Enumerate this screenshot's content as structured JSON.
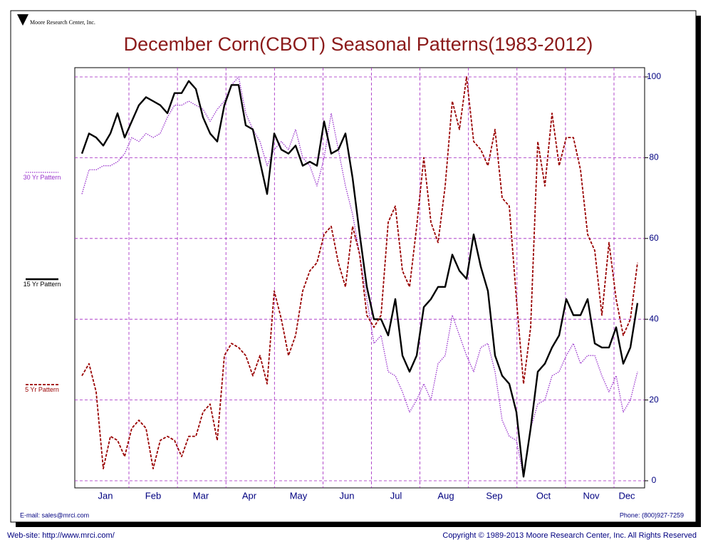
{
  "chart_data": {
    "type": "line",
    "title": "December Corn(CBOT) Seasonal Patterns(1983-2012)",
    "logo": "Moore Research Center, Inc.",
    "email": "E-mail: sales@mrci.com",
    "phone": "Phone: (800)927-7259",
    "website": "Web-site: http://www.mrci.com/",
    "copyright": "Copyright © 1989-2013 Moore Research Center, Inc. All Rights Reserved",
    "months": [
      "Jan",
      "Feb",
      "Mar",
      "Apr",
      "May",
      "Jun",
      "Jul",
      "Aug",
      "Sep",
      "Oct",
      "Nov",
      "Dec"
    ],
    "ylim": [
      0,
      100
    ],
    "yticks": [
      0,
      20,
      40,
      60,
      80,
      100
    ],
    "grid": true,
    "series": [
      {
        "name": "30 Yr Pattern",
        "color": "#9933cc",
        "style": "dotted",
        "values": [
          71,
          77,
          77,
          78,
          78,
          79,
          81,
          85,
          84,
          86,
          85,
          86,
          90,
          93,
          93,
          94,
          93,
          92,
          89,
          92,
          94,
          98,
          100,
          91,
          87,
          84,
          78,
          82,
          84,
          82,
          87,
          80,
          78,
          73,
          80,
          91,
          82,
          73,
          66,
          56,
          45,
          34,
          36,
          27,
          26,
          22,
          17,
          20,
          24,
          20,
          29,
          31,
          41,
          36,
          31,
          27,
          33,
          34,
          27,
          15,
          11,
          10,
          1,
          13,
          19,
          20,
          26,
          27,
          31,
          34,
          29,
          31,
          31,
          26,
          22,
          26,
          17,
          20,
          27
        ]
      },
      {
        "name": "15 Yr Pattern",
        "color": "#000000",
        "style": "solid",
        "values": [
          81,
          86,
          85,
          83,
          86,
          91,
          85,
          89,
          93,
          95,
          94,
          93,
          91,
          96,
          96,
          99,
          97,
          90,
          86,
          84,
          93,
          98,
          98,
          88,
          87,
          79,
          71,
          86,
          82,
          81,
          83,
          78,
          79,
          78,
          89,
          81,
          82,
          86,
          75,
          61,
          48,
          40,
          40,
          36,
          45,
          31,
          27,
          31,
          43,
          45,
          48,
          48,
          56,
          52,
          50,
          61,
          53,
          47,
          31,
          26,
          24,
          17,
          1,
          13,
          27,
          29,
          33,
          36,
          45,
          41,
          41,
          45,
          34,
          33,
          33,
          38,
          29,
          33,
          44
        ]
      },
      {
        "name": "5 Yr Pattern",
        "color": "#990000",
        "style": "dashed",
        "values": [
          26,
          29,
          22,
          3,
          11,
          10,
          6,
          13,
          15,
          13,
          3,
          10,
          11,
          10,
          6,
          11,
          11,
          17,
          19,
          10,
          31,
          34,
          33,
          31,
          26,
          31,
          24,
          47,
          40,
          31,
          36,
          47,
          52,
          54,
          61,
          63,
          54,
          48,
          63,
          56,
          41,
          38,
          41,
          64,
          68,
          52,
          48,
          63,
          80,
          64,
          59,
          73,
          94,
          87,
          100,
          84,
          82,
          78,
          87,
          70,
          68,
          45,
          24,
          38,
          84,
          73,
          91,
          78,
          85,
          85,
          77,
          61,
          57,
          41,
          59,
          45,
          36,
          40,
          54
        ]
      }
    ]
  }
}
